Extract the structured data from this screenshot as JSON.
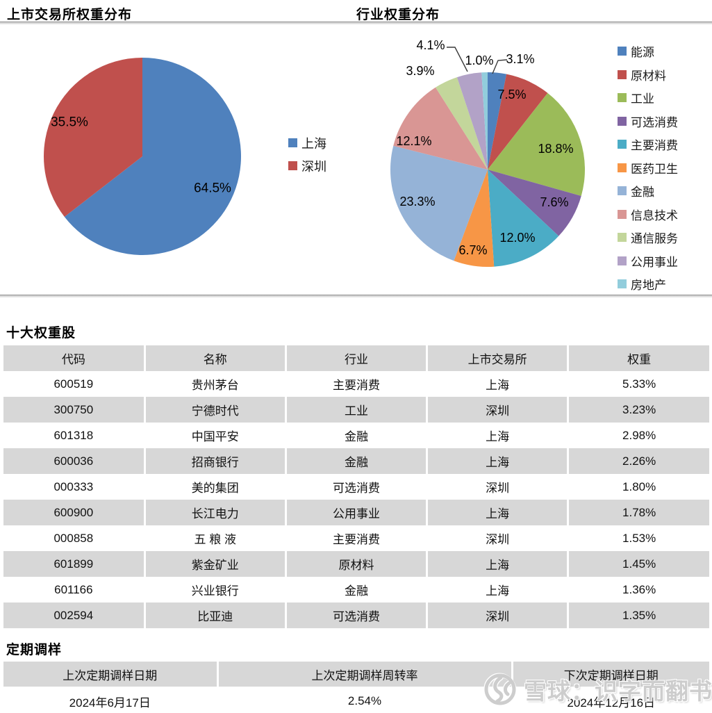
{
  "chart_data": [
    {
      "type": "pie",
      "title": "上市交易所权重分布",
      "categories": [
        "上海",
        "深圳"
      ],
      "values": [
        64.5,
        35.5
      ],
      "colors": [
        "#4F81BD",
        "#C0504D"
      ],
      "labels": [
        "64.5%",
        "35.5%"
      ],
      "legend_position": "right",
      "start_angle_deg": 0,
      "direction": "clockwise"
    },
    {
      "type": "pie",
      "title": "行业权重分布",
      "categories": [
        "能源",
        "原材料",
        "工业",
        "可选消费",
        "主要消费",
        "医药卫生",
        "金融",
        "信息技术",
        "通信服务",
        "公用事业",
        "房地产"
      ],
      "values": [
        3.1,
        7.5,
        18.8,
        7.6,
        12.0,
        6.7,
        23.3,
        12.1,
        3.9,
        4.1,
        1.0
      ],
      "colors": [
        "#4F81BD",
        "#C0504D",
        "#9BBB59",
        "#8064A2",
        "#4BACC6",
        "#F79646",
        "#95B3D7",
        "#D99694",
        "#C3D69B",
        "#B2A2C7",
        "#92CDDC"
      ],
      "labels": [
        "3.1%",
        "7.5%",
        "18.8%",
        "7.6%",
        "12.0%",
        "6.7%",
        "23.3%",
        "12.1%",
        "3.9%",
        "4.1%",
        "1.0%"
      ],
      "label_outside": [
        true,
        false,
        false,
        false,
        false,
        false,
        false,
        false,
        true,
        true,
        true
      ],
      "legend_position": "right",
      "start_angle_deg": 0,
      "direction": "clockwise"
    }
  ],
  "holdings": {
    "title": "十大权重股",
    "columns": [
      "代码",
      "名称",
      "行业",
      "上市交易所",
      "权重"
    ],
    "rows": [
      [
        "600519",
        "贵州茅台",
        "主要消费",
        "上海",
        "5.33%"
      ],
      [
        "300750",
        "宁德时代",
        "工业",
        "深圳",
        "3.23%"
      ],
      [
        "601318",
        "中国平安",
        "金融",
        "上海",
        "2.98%"
      ],
      [
        "600036",
        "招商银行",
        "金融",
        "上海",
        "2.26%"
      ],
      [
        "000333",
        "美的集团",
        "可选消费",
        "深圳",
        "1.80%"
      ],
      [
        "600900",
        "长江电力",
        "公用事业",
        "上海",
        "1.78%"
      ],
      [
        "000858",
        "五 粮 液",
        "主要消费",
        "深圳",
        "1.53%"
      ],
      [
        "601899",
        "紫金矿业",
        "原材料",
        "上海",
        "1.45%"
      ],
      [
        "601166",
        "兴业银行",
        "金融",
        "上海",
        "1.36%"
      ],
      [
        "002594",
        "比亚迪",
        "可选消费",
        "深圳",
        "1.35%"
      ]
    ]
  },
  "rebalance": {
    "title": "定期调样",
    "columns": [
      "上次定期调样日期",
      "上次定期调样周转率",
      "下次定期调样日期"
    ],
    "row": [
      "2024年6月17日",
      "2.54%",
      "2024年12月16日"
    ]
  },
  "watermark": {
    "logo": "xueqiu-snowball-logo",
    "text": "雪球：识字而翻书"
  }
}
